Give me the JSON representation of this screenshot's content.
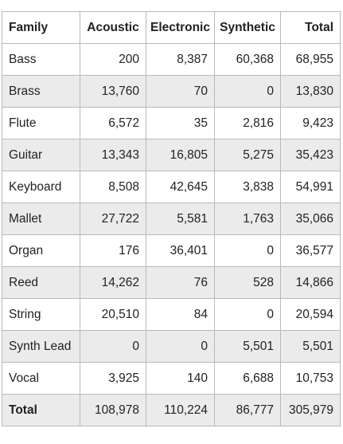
{
  "chart_data": {
    "type": "table",
    "columns": [
      "Family",
      "Acoustic",
      "Electronic",
      "Synthetic",
      "Total"
    ],
    "rows": [
      [
        "Bass",
        "200",
        "8,387",
        "60,368",
        "68,955"
      ],
      [
        "Brass",
        "13,760",
        "70",
        "0",
        "13,830"
      ],
      [
        "Flute",
        "6,572",
        "35",
        "2,816",
        "9,423"
      ],
      [
        "Guitar",
        "13,343",
        "16,805",
        "5,275",
        "35,423"
      ],
      [
        "Keyboard",
        "8,508",
        "42,645",
        "3,838",
        "54,991"
      ],
      [
        "Mallet",
        "27,722",
        "5,581",
        "1,763",
        "35,066"
      ],
      [
        "Organ",
        "176",
        "36,401",
        "0",
        "36,577"
      ],
      [
        "Reed",
        "14,262",
        "76",
        "528",
        "14,866"
      ],
      [
        "String",
        "20,510",
        "84",
        "0",
        "20,594"
      ],
      [
        "Synth Lead",
        "0",
        "0",
        "5,501",
        "5,501"
      ],
      [
        "Vocal",
        "3,925",
        "140",
        "6,688",
        "10,753"
      ]
    ],
    "total_row": [
      "Total",
      "108,978",
      "110,224",
      "86,777",
      "305,979"
    ]
  },
  "colors": {
    "shade": "#ebebeb",
    "border": "#b9b9b9",
    "text": "#222222"
  }
}
